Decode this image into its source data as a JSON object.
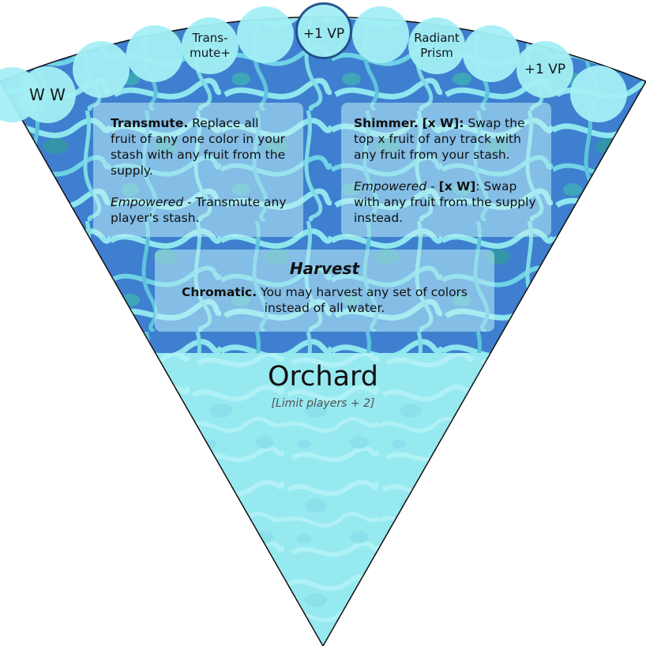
{
  "card": {
    "title": "Orchard",
    "limit": "[Limit players + 2]"
  },
  "track": {
    "slots": [
      {
        "label": ""
      },
      {
        "label": "W W"
      },
      {
        "label": ""
      },
      {
        "label": ""
      },
      {
        "label_line1": "Trans-",
        "label_line2": "mute+"
      },
      {
        "label": ""
      },
      {
        "label": "+1 VP",
        "highlight": true
      },
      {
        "label": ""
      },
      {
        "label_line1": "Radiant",
        "label_line2": "Prism"
      },
      {
        "label": ""
      },
      {
        "label": "+1 VP"
      },
      {
        "label": ""
      }
    ]
  },
  "abilities": {
    "transmute": {
      "name": "Transmute.",
      "text": " Replace all fruit of any one color in your stash with any fruit from the supply.",
      "empowered_label": "Empowered",
      "empowered_text": " - Transmute any player's stash."
    },
    "shimmer": {
      "name": "Shimmer.",
      "cost": "[x W]:",
      "text": " Swap the top x fruit of any track with any fruit from your stash.",
      "empowered_label": "Empowered",
      "empowered_sep": " - ",
      "empowered_cost": "[x W]",
      "empowered_text": ": Swap with any fruit from the supply instead."
    }
  },
  "harvest": {
    "heading": "Harvest",
    "name": "Chromatic.",
    "text": " You may harvest any set of colors instead of all water."
  },
  "colors": {
    "water_dark": "#3f7fd0",
    "water_light": "#8fe6ee",
    "slot_fill": "#a3eff4",
    "highlight_ring": "#1f4e8c"
  }
}
